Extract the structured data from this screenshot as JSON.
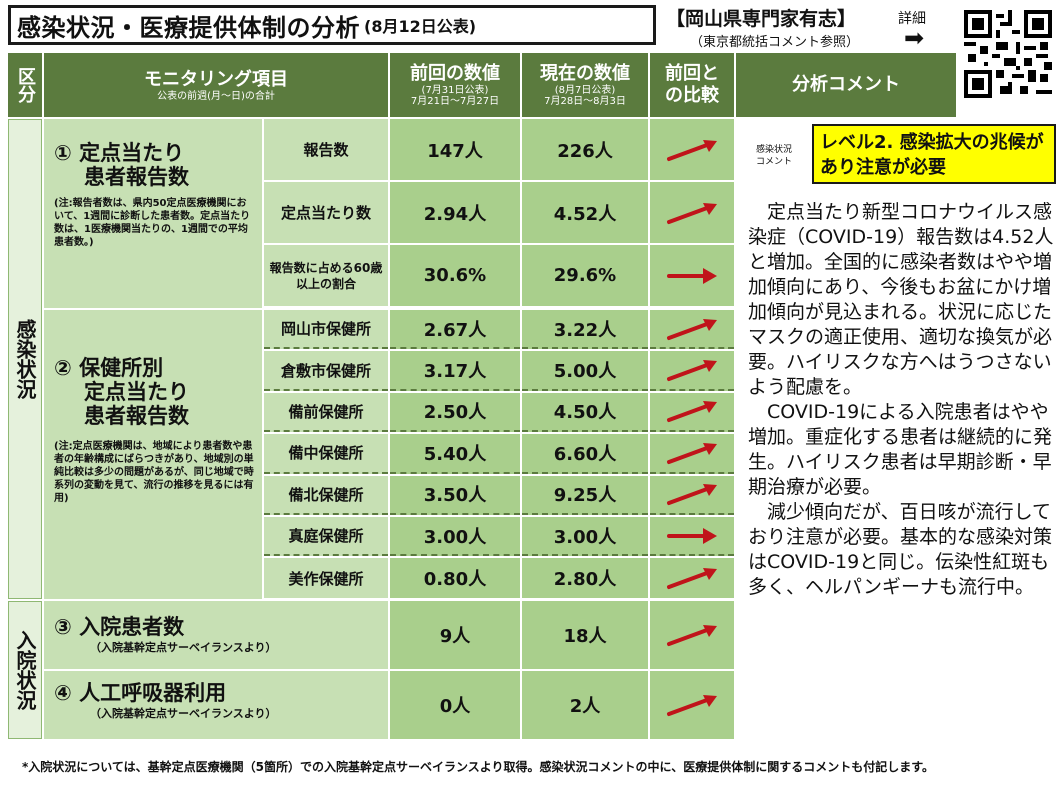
{
  "title": {
    "main": "感染状況・医療提供体制の分析",
    "date": "(8月12日公表)"
  },
  "expert": {
    "name": "【岡山県専門家有志】",
    "sub": "（東京都統括コメント参照）",
    "detail": "詳細",
    "arrow": "➡"
  },
  "header": {
    "col_kubun": "区分",
    "col_item": "モニタリング項目",
    "col_item_sub": "公表の前週(月～日)の合計",
    "col_prev": "前回の数値",
    "col_prev_sub1": "(7月31日公表)",
    "col_prev_sub2": "7月21日～7月27日",
    "col_curr": "現在の数値",
    "col_curr_sub1": "(8月7日公表)",
    "col_curr_sub2": "7月28日～8月3日",
    "col_compare1": "前回と",
    "col_compare2": "の比較",
    "col_comment": "分析コメント"
  },
  "sections": {
    "infection": "感染状況",
    "hospital": "入院状況"
  },
  "group1": {
    "title1": "① 定点当たり",
    "title2": "患者報告数",
    "note": "(注:報告者数は、県内50定点医療機関において、1週間に診断した患者数。定点当たり数は、1医療機関当たりの、1週間での平均患者数。)",
    "rows": [
      {
        "label": "報告数",
        "prev": "147人",
        "curr": "226人",
        "trend": "up"
      },
      {
        "label": "定点当たり数",
        "prev": "2.94人",
        "curr": "4.52人",
        "trend": "up"
      },
      {
        "label": "報告数に占める60歳以上の割合",
        "prev": "30.6%",
        "curr": "29.6%",
        "trend": "flat"
      }
    ]
  },
  "group2": {
    "title1": "② 保健所別",
    "title2": "定点当たり",
    "title3": "患者報告数",
    "note": "(注:定点医療機関は、地域により患者数や患者の年齢構成にばらつきがあり、地域別の単純比較は多少の問題があるが、同じ地域で時系列の変動を見て、流行の推移を見るには有用)",
    "rows": [
      {
        "label": "岡山市保健所",
        "prev": "2.67人",
        "curr": "3.22人",
        "trend": "up"
      },
      {
        "label": "倉敷市保健所",
        "prev": "3.17人",
        "curr": "5.00人",
        "trend": "up"
      },
      {
        "label": "備前保健所",
        "prev": "2.50人",
        "curr": "4.50人",
        "trend": "up"
      },
      {
        "label": "備中保健所",
        "prev": "5.40人",
        "curr": "6.60人",
        "trend": "up"
      },
      {
        "label": "備北保健所",
        "prev": "3.50人",
        "curr": "9.25人",
        "trend": "up"
      },
      {
        "label": "真庭保健所",
        "prev": "3.00人",
        "curr": "3.00人",
        "trend": "flat"
      },
      {
        "label": "美作保健所",
        "prev": "0.80人",
        "curr": "2.80人",
        "trend": "up"
      }
    ]
  },
  "group3": {
    "title": "③ 入院患者数",
    "note": "（入院基幹定点サーベイランスより）",
    "prev": "9人",
    "curr": "18人",
    "trend": "up"
  },
  "group4": {
    "title": "④ 人工呼吸器利用",
    "note": "（入院基幹定点サーベイランスより）",
    "prev": "0人",
    "curr": "2人",
    "trend": "up"
  },
  "comment": {
    "status_label1": "感染状況",
    "status_label2": "コメント",
    "level": "レベル2. 感染拡大の兆候があり注意が必要",
    "para1": "定点当たり新型コロナウイルス感染症（COVID-19）報告数は4.52人と増加。全国的に感染者数はやや増加傾向にあり、今後もお盆にかけ増加傾向が見込まれる。状況に応じたマスクの適正使用、適切な換気が必要。ハイリスクな方へはうつさないよう配慮を。",
    "para2": "COVID-19による入院患者はやや増加。重症化する患者は継続的に発生。ハイリスク患者は早期診断・早期治療が必要。",
    "para3": "減少傾向だが、百日咳が流行しており注意が必要。基本的な感染対策はCOVID-19と同じ。伝染性紅斑も多く、ヘルパンギーナも流行中。"
  },
  "footnote": "*入院状況については、基幹定点医療機関（5箇所）での入院基幹定点サーベイランスより取得。感染状況コメントの中に、医療提供体制に関するコメントも付記します。",
  "colors": {
    "header": "#5b7b3e",
    "light": "#a9cf8c",
    "mid": "#c7e0b4",
    "arrow": "#c0141a",
    "level": "#ffff00"
  }
}
